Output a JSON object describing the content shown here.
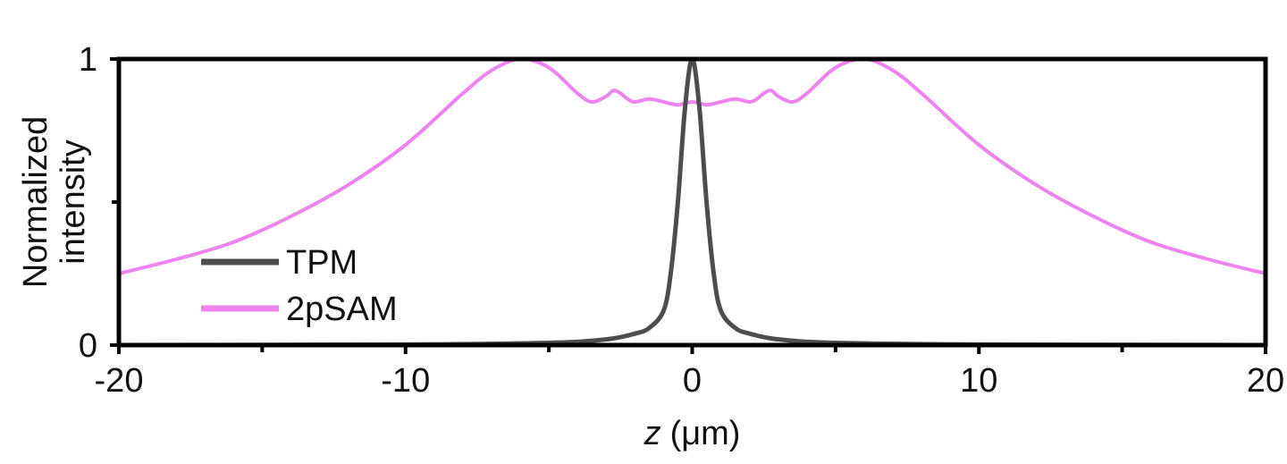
{
  "chart_data": {
    "type": "line",
    "xlabel_var": "z",
    "xlabel_unit": "(μm)",
    "ylabel_line1": "Normalized",
    "ylabel_line2": "intensity",
    "xlim": [
      -20,
      20
    ],
    "ylim": [
      0,
      1
    ],
    "xticks": [
      -20,
      -10,
      0,
      10,
      20
    ],
    "xticks_minor": [
      -15,
      -5,
      5,
      15
    ],
    "yticks": [
      0,
      1
    ],
    "yticks_minor": [
      0.5
    ],
    "grid": false,
    "legend_position": "lower-left",
    "series": [
      {
        "name": "TPM",
        "color": "#4d4d4d",
        "x": [
          -20,
          -10,
          -5,
          -3,
          -2,
          -1.5,
          -1,
          -0.75,
          -0.5,
          -0.25,
          0,
          0.25,
          0.5,
          0.75,
          1,
          1.5,
          2,
          3,
          5,
          10,
          20
        ],
        "y": [
          0.0,
          0.002,
          0.008,
          0.02,
          0.04,
          0.06,
          0.12,
          0.25,
          0.5,
          0.83,
          1.0,
          0.83,
          0.5,
          0.25,
          0.12,
          0.06,
          0.04,
          0.02,
          0.008,
          0.002,
          0.0
        ]
      },
      {
        "name": "2pSAM",
        "color": "#ee82ee",
        "x": [
          -20,
          -18,
          -16,
          -14,
          -12,
          -10,
          -8,
          -7,
          -6,
          -5,
          -4,
          -3.5,
          -3,
          -2.75,
          -2.5,
          -2.25,
          -2,
          -1.5,
          -1,
          -0.5,
          0,
          0.5,
          1,
          1.5,
          2,
          2.25,
          2.5,
          2.75,
          3,
          3.5,
          4,
          5,
          6,
          7,
          8,
          10,
          12,
          14,
          16,
          18,
          20
        ],
        "y": [
          0.25,
          0.3,
          0.36,
          0.45,
          0.56,
          0.7,
          0.88,
          0.96,
          1.0,
          0.97,
          0.88,
          0.85,
          0.87,
          0.89,
          0.88,
          0.86,
          0.85,
          0.86,
          0.85,
          0.84,
          0.85,
          0.84,
          0.85,
          0.86,
          0.85,
          0.86,
          0.88,
          0.89,
          0.87,
          0.85,
          0.88,
          0.97,
          1.0,
          0.96,
          0.88,
          0.7,
          0.56,
          0.45,
          0.36,
          0.3,
          0.25
        ]
      }
    ]
  }
}
